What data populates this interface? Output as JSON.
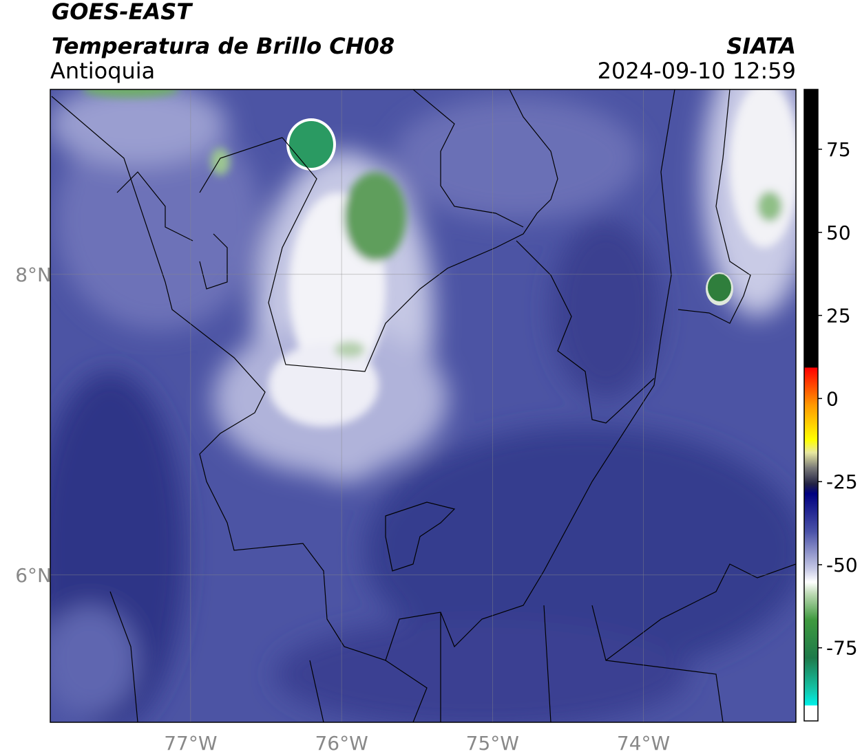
{
  "header": {
    "title": "GOES-EAST",
    "subtitle": "Temperatura de Brillo CH08",
    "region": "Antioquia",
    "source": "SIATA",
    "timestamp": "2024-09-10 12:59"
  },
  "map": {
    "lonlim": [
      -77.93,
      -72.99
    ],
    "latlim": [
      5.02,
      9.23
    ],
    "lon_ticks": [
      {
        "value": -77,
        "label": "77°W"
      },
      {
        "value": -76,
        "label": "76°W"
      },
      {
        "value": -75,
        "label": "75°W"
      },
      {
        "value": -74,
        "label": "74°W"
      }
    ],
    "lat_ticks": [
      {
        "value": 8,
        "label": "8°N"
      },
      {
        "value": 6,
        "label": "6°N"
      }
    ]
  },
  "colorbar": {
    "lim": [
      -97,
      93
    ],
    "ticks": [
      75,
      50,
      25,
      0,
      -25,
      -50,
      -75
    ]
  }
}
